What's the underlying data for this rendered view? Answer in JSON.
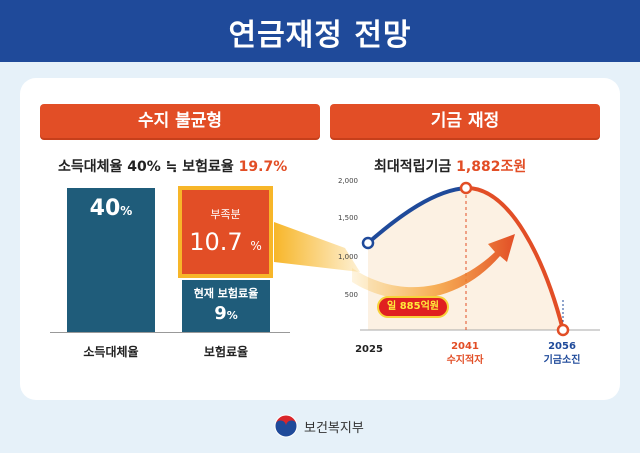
{
  "header": {
    "title": "연금재정 전망"
  },
  "left": {
    "banner": "수지 불균형",
    "subtitle_prefix": "소득대체율 40% ≒ 보험료율 ",
    "subtitle_highlight": "19.7%",
    "bar_income": {
      "value": "40",
      "unit": "%",
      "label": "소득대체율"
    },
    "deficit": {
      "label": "부족분",
      "value": "10.7",
      "unit": "%"
    },
    "current": {
      "label": "현재 보험료율",
      "value": "9",
      "unit": "%"
    },
    "bar_premium_label": "보험료율"
  },
  "right": {
    "banner": "기금 재정",
    "subtitle_prefix": "최대적립기금 ",
    "subtitle_highlight": "1,882조원",
    "y_ticks": [
      "2,000",
      "1,500",
      "1,000",
      "500"
    ],
    "x_labels": [
      {
        "year": "2025",
        "note": ""
      },
      {
        "year": "2041",
        "note": "수지적자"
      },
      {
        "year": "2056",
        "note": "기금소진"
      }
    ],
    "pill": "일 885억원"
  },
  "footer": {
    "org": "보건복지부"
  },
  "colors": {
    "navy": "#1f4a9a",
    "orange": "#e24e26",
    "teal": "#1f5c7a",
    "gold": "#f7b629"
  }
}
